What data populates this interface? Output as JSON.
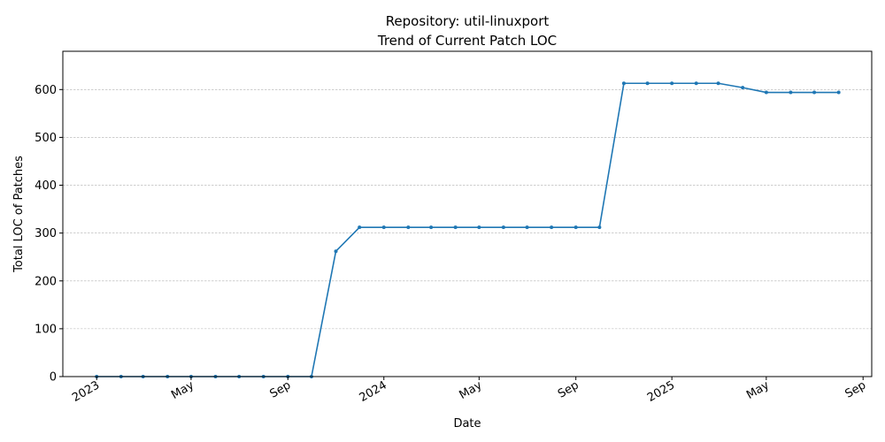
{
  "chart_data": {
    "type": "line",
    "title": "Repository: util-linuxport",
    "subtitle": "Trend of Current Patch LOC",
    "xlabel": "Date",
    "ylabel": "Total LOC of Patches",
    "ylim": [
      0,
      680
    ],
    "xlim": [
      "2022-11-19",
      "2025-09-12"
    ],
    "grid": "y-dashed",
    "line_color": "#1f77b4",
    "yticks": [
      0,
      100,
      200,
      300,
      400,
      500,
      600
    ],
    "xticks": [
      {
        "date": "2023-01-01",
        "label": "2023"
      },
      {
        "date": "2023-05-01",
        "label": "May"
      },
      {
        "date": "2023-09-01",
        "label": "Sep"
      },
      {
        "date": "2024-01-01",
        "label": "2024"
      },
      {
        "date": "2024-05-01",
        "label": "May"
      },
      {
        "date": "2024-09-01",
        "label": "Sep"
      },
      {
        "date": "2025-01-01",
        "label": "2025"
      },
      {
        "date": "2025-05-01",
        "label": "May"
      },
      {
        "date": "2025-09-01",
        "label": "Sep"
      }
    ],
    "series": [
      {
        "x": [
          "2023-01-01",
          "2023-02-01",
          "2023-03-01",
          "2023-04-01",
          "2023-05-01",
          "2023-06-01",
          "2023-07-01",
          "2023-08-01",
          "2023-09-01",
          "2023-10-01",
          "2023-11-01",
          "2023-12-01",
          "2024-01-01",
          "2024-02-01",
          "2024-03-01",
          "2024-04-01",
          "2024-05-01",
          "2024-06-01",
          "2024-07-01",
          "2024-08-01",
          "2024-09-01",
          "2024-10-01",
          "2024-11-01",
          "2024-12-01",
          "2025-01-01",
          "2025-02-01",
          "2025-03-01",
          "2025-04-01",
          "2025-05-01",
          "2025-06-01",
          "2025-07-01",
          "2025-08-01"
        ],
        "y": [
          0,
          0,
          0,
          0,
          0,
          0,
          0,
          0,
          0,
          0,
          262,
          312,
          312,
          312,
          312,
          312,
          312,
          312,
          312,
          312,
          312,
          312,
          613,
          613,
          613,
          613,
          613,
          604,
          594,
          594,
          594,
          594
        ]
      }
    ]
  }
}
